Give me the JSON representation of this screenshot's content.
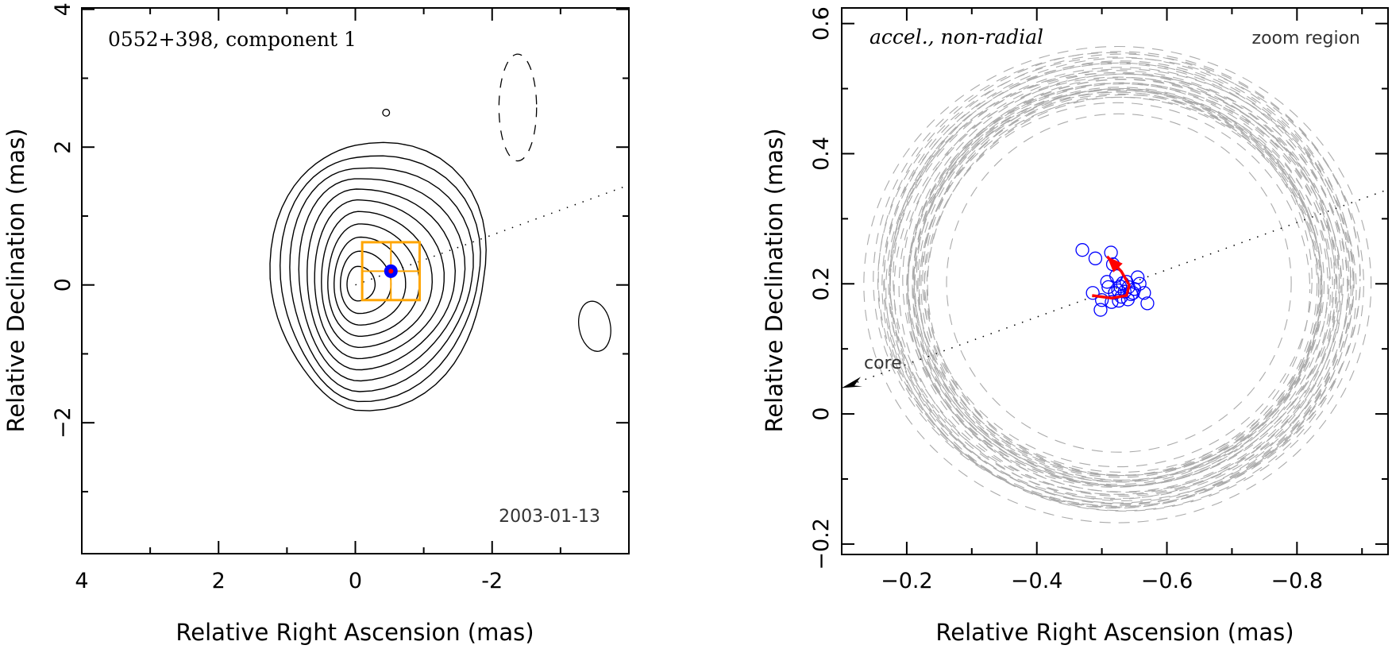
{
  "chart_data": [
    {
      "type": "contour",
      "title": "0552+398, component 1",
      "date_label": "2003-01-13",
      "xlabel": "Relative Right Ascension (mas)",
      "ylabel": "Relative Declination (mas)",
      "xlim": [
        4.0,
        -4.0
      ],
      "ylim": [
        -3.9,
        4.02
      ],
      "x_ticks": [
        4,
        2,
        0,
        -2
      ],
      "x_tick_labels": [
        "4",
        "2",
        "0",
        "-2"
      ],
      "x_minor_ticks": [
        3,
        1,
        -1,
        -3
      ],
      "y_ticks": [
        4,
        2,
        0,
        -2
      ],
      "y_tick_labels": [
        "4",
        "2",
        "0",
        "−2"
      ],
      "y_minor_ticks": [
        3,
        1,
        -1,
        -3
      ],
      "core_position": [
        0.0,
        0.0
      ],
      "contours": {
        "count": 11,
        "center": [
          0.0,
          0.0
        ],
        "outer_extent_x": [
          1.2,
          -1.95
        ],
        "outer_extent_y": [
          -1.85,
          2.0
        ]
      },
      "negative_contour": {
        "x_range": [
          -2.1,
          -2.65
        ],
        "y_range": [
          3.35,
          1.8
        ],
        "style": "dashed"
      },
      "isolated_contours": [
        {
          "x": -3.5,
          "y": -0.6,
          "rx": 0.23,
          "ry": 0.37
        },
        {
          "x": -0.45,
          "y": 2.5,
          "rx": 0.05,
          "ry": 0.05
        }
      ],
      "component_marker": {
        "x": -0.52,
        "y": 0.2,
        "color": "#0000ff"
      },
      "zoom_box": {
        "x_range": [
          -0.1,
          -0.94
        ],
        "y_range": [
          -0.22,
          0.62
        ],
        "color": "#ffa500"
      },
      "jet_axis": {
        "from": [
          0.0,
          0.0
        ],
        "to": [
          -4.0,
          1.45
        ],
        "style": "dotted"
      }
    },
    {
      "type": "scatter",
      "title": "accel., non-radial",
      "corner_label": "zoom region",
      "xlabel": "Relative Right Ascension (mas)",
      "ylabel": "Relative Declination (mas)",
      "xlim": [
        -0.1,
        -0.94
      ],
      "ylim": [
        -0.216,
        0.624
      ],
      "x_ticks": [
        -0.2,
        -0.4,
        -0.6,
        -0.8
      ],
      "x_tick_labels": [
        "−0.2",
        "−0.4",
        "−0.6",
        "−0.8"
      ],
      "x_minor_ticks": [
        -0.1,
        -0.3,
        -0.5,
        -0.7,
        -0.9
      ],
      "y_ticks": [
        0.6,
        0.4,
        0.2,
        0.0,
        -0.2
      ],
      "y_tick_labels": [
        "0.6",
        "0.4",
        "0.2",
        "0",
        "−0.2"
      ],
      "y_minor_ticks": [
        0.5,
        0.3,
        0.1,
        -0.1
      ],
      "core_label": "core",
      "jet_axis": {
        "from": [
          -0.1,
          0.04
        ],
        "to": [
          -0.94,
          0.345
        ],
        "style": "dotted"
      },
      "positions_color": "#0000ff",
      "positions": [
        [
          -0.47,
          0.252
        ],
        [
          -0.49,
          0.239
        ],
        [
          -0.514,
          0.248
        ],
        [
          -0.517,
          0.23
        ],
        [
          -0.522,
          0.212
        ],
        [
          -0.508,
          0.203
        ],
        [
          -0.532,
          0.201
        ],
        [
          -0.541,
          0.195
        ],
        [
          -0.555,
          0.21
        ],
        [
          -0.525,
          0.19
        ],
        [
          -0.535,
          0.188
        ],
        [
          -0.545,
          0.184
        ],
        [
          -0.53,
          0.18
        ],
        [
          -0.52,
          0.186
        ],
        [
          -0.51,
          0.195
        ],
        [
          -0.54,
          0.176
        ],
        [
          -0.55,
          0.192
        ],
        [
          -0.558,
          0.2
        ],
        [
          -0.548,
          0.186
        ],
        [
          -0.526,
          0.174
        ],
        [
          -0.515,
          0.172
        ],
        [
          -0.486,
          0.186
        ],
        [
          -0.5,
          0.175
        ],
        [
          -0.498,
          0.16
        ],
        [
          -0.565,
          0.186
        ],
        [
          -0.57,
          0.17
        ],
        [
          -0.538,
          0.203
        ],
        [
          -0.528,
          0.196
        ]
      ],
      "trajectory_color": "#ff0000",
      "trajectory": [
        [
          -0.485,
          0.182
        ],
        [
          -0.515,
          0.178
        ],
        [
          -0.538,
          0.182
        ],
        [
          -0.542,
          0.198
        ],
        [
          -0.53,
          0.219
        ],
        [
          -0.508,
          0.242
        ]
      ],
      "uncertainty_rings": {
        "color": "#aaaaaa",
        "style": "dashed",
        "center": [
          -0.526,
          0.2
        ],
        "count": 40,
        "inner_radius_x": 0.265,
        "inner_radius_y": 0.26,
        "outer_radius_x": 0.39,
        "outer_radius_y": 0.366
      }
    }
  ]
}
